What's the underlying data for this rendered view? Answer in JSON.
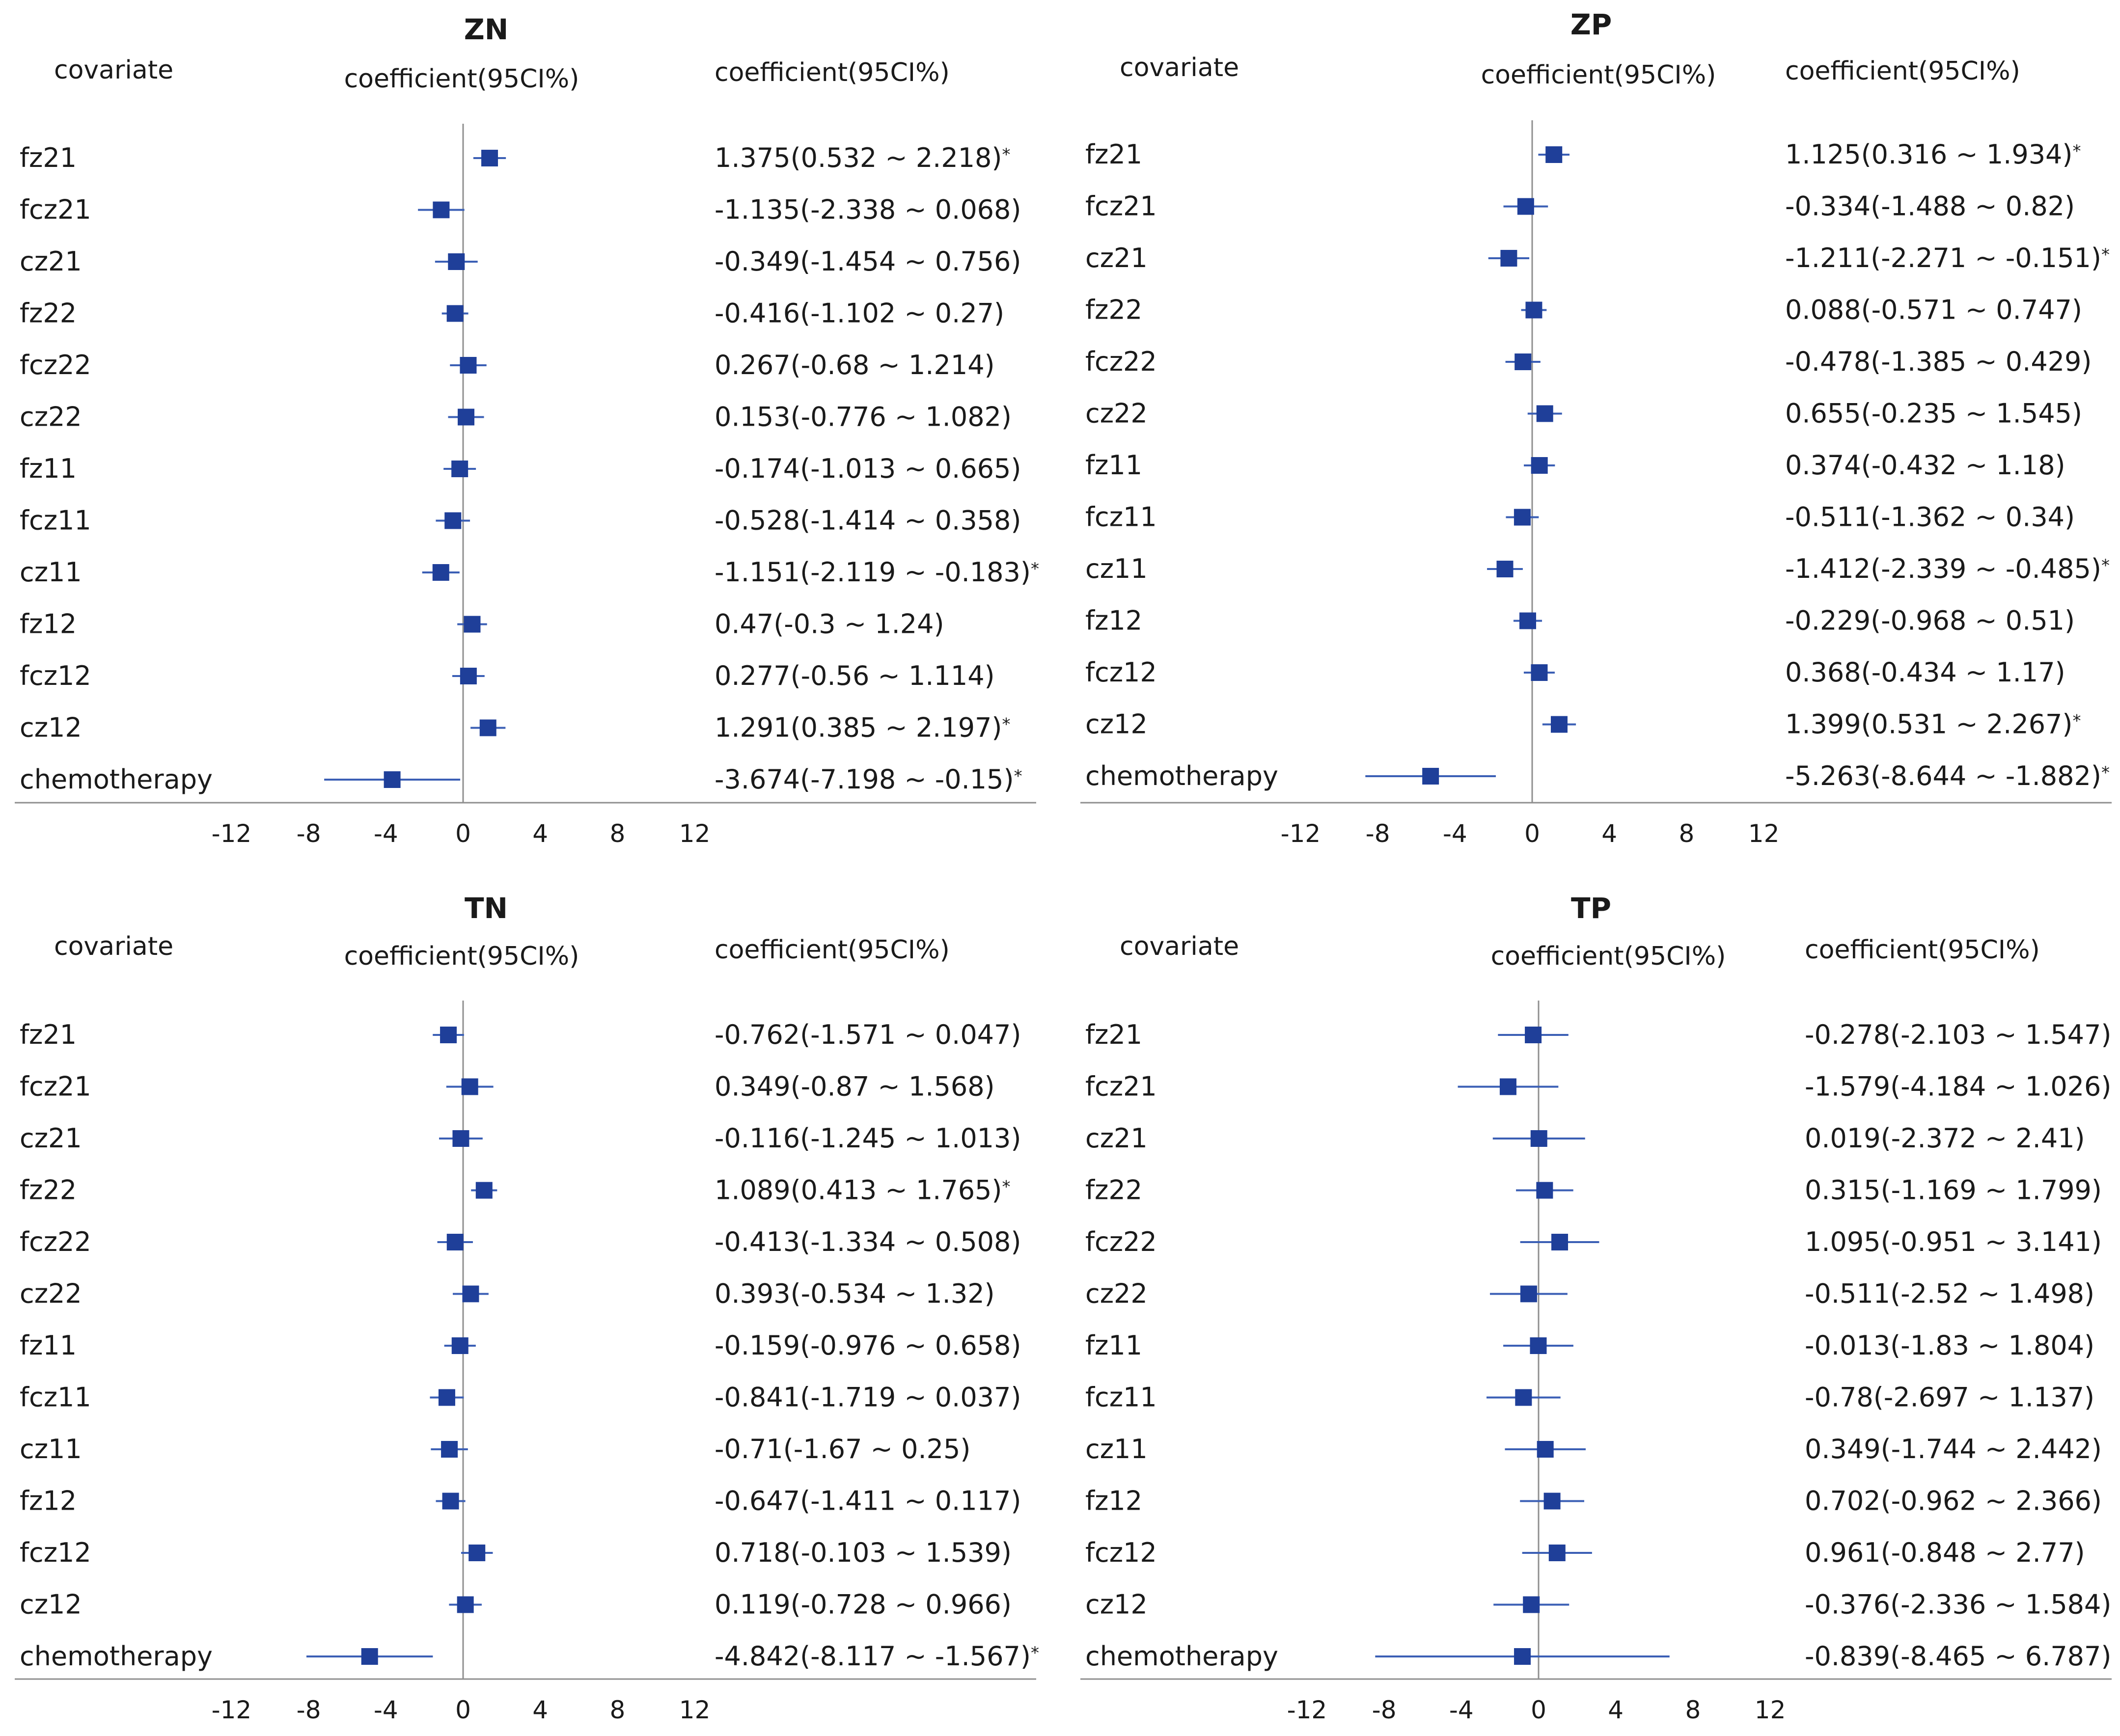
{
  "colors": {
    "marker": "#1f3f99",
    "ci_line": "#3b5fb5",
    "axis": "#8f8f8f",
    "text": "#1a1a1a"
  },
  "star": "*",
  "chart_data": [
    {
      "type": "forest",
      "title": "ZN",
      "header_covariate": "covariate",
      "header_plot": "coefficient(95CI%)",
      "header_values": "coefficient(95CI%)",
      "xticks": [
        -12,
        -8,
        -4,
        0,
        4,
        8,
        12
      ],
      "xlim": [
        -12,
        12
      ],
      "rows": [
        {
          "label": "fz21",
          "est": 1.375,
          "lo": 0.532,
          "hi": 2.218,
          "text": "1.375(0.532 ~ 2.218)",
          "sig": true
        },
        {
          "label": "fcz21",
          "est": -1.135,
          "lo": -2.338,
          "hi": 0.068,
          "text": "-1.135(-2.338 ~ 0.068)",
          "sig": false
        },
        {
          "label": "cz21",
          "est": -0.349,
          "lo": -1.454,
          "hi": 0.756,
          "text": "-0.349(-1.454 ~ 0.756)",
          "sig": false
        },
        {
          "label": "fz22",
          "est": -0.416,
          "lo": -1.102,
          "hi": 0.27,
          "text": "-0.416(-1.102 ~ 0.27)",
          "sig": false
        },
        {
          "label": "fcz22",
          "est": 0.267,
          "lo": -0.68,
          "hi": 1.214,
          "text": "0.267(-0.68 ~ 1.214)",
          "sig": false
        },
        {
          "label": "cz22",
          "est": 0.153,
          "lo": -0.776,
          "hi": 1.082,
          "text": "0.153(-0.776 ~ 1.082)",
          "sig": false
        },
        {
          "label": "fz11",
          "est": -0.174,
          "lo": -1.013,
          "hi": 0.665,
          "text": "-0.174(-1.013 ~ 0.665)",
          "sig": false
        },
        {
          "label": "fcz11",
          "est": -0.528,
          "lo": -1.414,
          "hi": 0.358,
          "text": "-0.528(-1.414 ~ 0.358)",
          "sig": false
        },
        {
          "label": "cz11",
          "est": -1.151,
          "lo": -2.119,
          "hi": -0.183,
          "text": "-1.151(-2.119 ~ -0.183)",
          "sig": true
        },
        {
          "label": "fz12",
          "est": 0.47,
          "lo": -0.3,
          "hi": 1.24,
          "text": "0.47(-0.3 ~ 1.24)",
          "sig": false
        },
        {
          "label": "fcz12",
          "est": 0.277,
          "lo": -0.56,
          "hi": 1.114,
          "text": "0.277(-0.56 ~ 1.114)",
          "sig": false
        },
        {
          "label": "cz12",
          "est": 1.291,
          "lo": 0.385,
          "hi": 2.197,
          "text": "1.291(0.385 ~ 2.197)",
          "sig": true
        },
        {
          "label": "chemotherapy",
          "est": -3.674,
          "lo": -7.198,
          "hi": -0.15,
          "text": "-3.674(-7.198 ~ -0.15)",
          "sig": true
        }
      ]
    },
    {
      "type": "forest",
      "title": "ZP",
      "header_covariate": "covariate",
      "header_plot": "coefficient(95CI%)",
      "header_values": "coefficient(95CI%)",
      "xticks": [
        -12,
        -8,
        -4,
        0,
        4,
        8,
        12
      ],
      "xlim": [
        -12,
        12
      ],
      "rows": [
        {
          "label": "fz21",
          "est": 1.125,
          "lo": 0.316,
          "hi": 1.934,
          "text": "1.125(0.316 ~ 1.934)",
          "sig": true
        },
        {
          "label": "fcz21",
          "est": -0.334,
          "lo": -1.488,
          "hi": 0.82,
          "text": "-0.334(-1.488 ~ 0.82)",
          "sig": false
        },
        {
          "label": "cz21",
          "est": -1.211,
          "lo": -2.271,
          "hi": -0.151,
          "text": "-1.211(-2.271 ~ -0.151)",
          "sig": true
        },
        {
          "label": "fz22",
          "est": 0.088,
          "lo": -0.571,
          "hi": 0.747,
          "text": "0.088(-0.571 ~ 0.747)",
          "sig": false
        },
        {
          "label": "fcz22",
          "est": -0.478,
          "lo": -1.385,
          "hi": 0.429,
          "text": "-0.478(-1.385 ~ 0.429)",
          "sig": false
        },
        {
          "label": "cz22",
          "est": 0.655,
          "lo": -0.235,
          "hi": 1.545,
          "text": "0.655(-0.235 ~ 1.545)",
          "sig": false
        },
        {
          "label": "fz11",
          "est": 0.374,
          "lo": -0.432,
          "hi": 1.18,
          "text": "0.374(-0.432 ~ 1.18)",
          "sig": false
        },
        {
          "label": "fcz11",
          "est": -0.511,
          "lo": -1.362,
          "hi": 0.34,
          "text": "-0.511(-1.362 ~ 0.34)",
          "sig": false
        },
        {
          "label": "cz11",
          "est": -1.412,
          "lo": -2.339,
          "hi": -0.485,
          "text": "-1.412(-2.339 ~ -0.485)",
          "sig": true
        },
        {
          "label": "fz12",
          "est": -0.229,
          "lo": -0.968,
          "hi": 0.51,
          "text": "-0.229(-0.968 ~ 0.51)",
          "sig": false
        },
        {
          "label": "fcz12",
          "est": 0.368,
          "lo": -0.434,
          "hi": 1.17,
          "text": "0.368(-0.434 ~ 1.17)",
          "sig": false
        },
        {
          "label": "cz12",
          "est": 1.399,
          "lo": 0.531,
          "hi": 2.267,
          "text": "1.399(0.531 ~ 2.267)",
          "sig": true
        },
        {
          "label": "chemotherapy",
          "est": -5.263,
          "lo": -8.644,
          "hi": -1.882,
          "text": "-5.263(-8.644 ~ -1.882)",
          "sig": true
        }
      ]
    },
    {
      "type": "forest",
      "title": "TN",
      "header_covariate": "covariate",
      "header_plot": "coefficient(95CI%)",
      "header_values": "coefficient(95CI%)",
      "xticks": [
        -12,
        -8,
        -4,
        0,
        4,
        8,
        12
      ],
      "xlim": [
        -12,
        12
      ],
      "rows": [
        {
          "label": "fz21",
          "est": -0.762,
          "lo": -1.571,
          "hi": 0.047,
          "text": "-0.762(-1.571 ~ 0.047)",
          "sig": false
        },
        {
          "label": "fcz21",
          "est": 0.349,
          "lo": -0.87,
          "hi": 1.568,
          "text": "0.349(-0.87 ~ 1.568)",
          "sig": false
        },
        {
          "label": "cz21",
          "est": -0.116,
          "lo": -1.245,
          "hi": 1.013,
          "text": "-0.116(-1.245 ~ 1.013)",
          "sig": false
        },
        {
          "label": "fz22",
          "est": 1.089,
          "lo": 0.413,
          "hi": 1.765,
          "text": "1.089(0.413 ~ 1.765)",
          "sig": true
        },
        {
          "label": "fcz22",
          "est": -0.413,
          "lo": -1.334,
          "hi": 0.508,
          "text": "-0.413(-1.334 ~ 0.508)",
          "sig": false
        },
        {
          "label": "cz22",
          "est": 0.393,
          "lo": -0.534,
          "hi": 1.32,
          "text": "0.393(-0.534 ~ 1.32)",
          "sig": false
        },
        {
          "label": "fz11",
          "est": -0.159,
          "lo": -0.976,
          "hi": 0.658,
          "text": "-0.159(-0.976 ~ 0.658)",
          "sig": false
        },
        {
          "label": "fcz11",
          "est": -0.841,
          "lo": -1.719,
          "hi": 0.037,
          "text": "-0.841(-1.719 ~ 0.037)",
          "sig": false
        },
        {
          "label": "cz11",
          "est": -0.71,
          "lo": -1.67,
          "hi": 0.25,
          "text": "-0.71(-1.67 ~ 0.25)",
          "sig": false
        },
        {
          "label": "fz12",
          "est": -0.647,
          "lo": -1.411,
          "hi": 0.117,
          "text": "-0.647(-1.411 ~ 0.117)",
          "sig": false
        },
        {
          "label": "fcz12",
          "est": 0.718,
          "lo": -0.103,
          "hi": 1.539,
          "text": "0.718(-0.103 ~ 1.539)",
          "sig": false
        },
        {
          "label": "cz12",
          "est": 0.119,
          "lo": -0.728,
          "hi": 0.966,
          "text": "0.119(-0.728 ~ 0.966)",
          "sig": false
        },
        {
          "label": "chemotherapy",
          "est": -4.842,
          "lo": -8.117,
          "hi": -1.567,
          "text": "-4.842(-8.117 ~ -1.567)",
          "sig": true
        }
      ]
    },
    {
      "type": "forest",
      "title": "TP",
      "header_covariate": "covariate",
      "header_plot": "coefficient(95CI%)",
      "header_values": "coefficient(95CI%)",
      "xticks": [
        -12,
        -8,
        -4,
        0,
        4,
        8,
        12
      ],
      "xlim": [
        -12,
        12
      ],
      "rows": [
        {
          "label": "fz21",
          "est": -0.278,
          "lo": -2.103,
          "hi": 1.547,
          "text": "-0.278(-2.103 ~ 1.547)",
          "sig": false
        },
        {
          "label": "fcz21",
          "est": -1.579,
          "lo": -4.184,
          "hi": 1.026,
          "text": "-1.579(-4.184 ~ 1.026)",
          "sig": false
        },
        {
          "label": "cz21",
          "est": 0.019,
          "lo": -2.372,
          "hi": 2.41,
          "text": "0.019(-2.372 ~ 2.41)",
          "sig": false
        },
        {
          "label": "fz22",
          "est": 0.315,
          "lo": -1.169,
          "hi": 1.799,
          "text": "0.315(-1.169 ~ 1.799)",
          "sig": false
        },
        {
          "label": "fcz22",
          "est": 1.095,
          "lo": -0.951,
          "hi": 3.141,
          "text": "1.095(-0.951 ~ 3.141)",
          "sig": false
        },
        {
          "label": "cz22",
          "est": -0.511,
          "lo": -2.52,
          "hi": 1.498,
          "text": "-0.511(-2.52 ~ 1.498)",
          "sig": false
        },
        {
          "label": "fz11",
          "est": -0.013,
          "lo": -1.83,
          "hi": 1.804,
          "text": "-0.013(-1.83 ~ 1.804)",
          "sig": false
        },
        {
          "label": "fcz11",
          "est": -0.78,
          "lo": -2.697,
          "hi": 1.137,
          "text": "-0.78(-2.697 ~ 1.137)",
          "sig": false
        },
        {
          "label": "cz11",
          "est": 0.349,
          "lo": -1.744,
          "hi": 2.442,
          "text": "0.349(-1.744 ~ 2.442)",
          "sig": false
        },
        {
          "label": "fz12",
          "est": 0.702,
          "lo": -0.962,
          "hi": 2.366,
          "text": "0.702(-0.962 ~ 2.366)",
          "sig": false
        },
        {
          "label": "fcz12",
          "est": 0.961,
          "lo": -0.848,
          "hi": 2.77,
          "text": "0.961(-0.848 ~ 2.77)",
          "sig": false
        },
        {
          "label": "cz12",
          "est": -0.376,
          "lo": -2.336,
          "hi": 1.584,
          "text": "-0.376(-2.336 ~ 1.584)",
          "sig": false
        },
        {
          "label": "chemotherapy",
          "est": -0.839,
          "lo": -8.465,
          "hi": 6.787,
          "text": "-0.839(-8.465 ~ 6.787)",
          "sig": false
        }
      ]
    }
  ]
}
